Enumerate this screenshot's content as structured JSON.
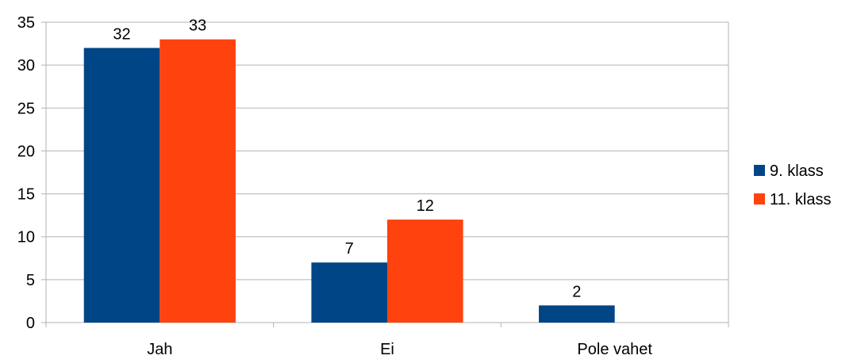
{
  "chart_data": {
    "type": "bar",
    "categories": [
      "Jah",
      "Ei",
      "Pole vahet"
    ],
    "series": [
      {
        "name": "9. klass",
        "values": [
          32,
          7,
          2
        ],
        "color": "#004586"
      },
      {
        "name": "11. klass",
        "values": [
          33,
          12,
          null
        ],
        "color": "#ff420e"
      }
    ],
    "ylim": [
      0,
      35
    ],
    "yticks": [
      0,
      5,
      10,
      15,
      20,
      25,
      30,
      35
    ],
    "grid": true,
    "legend_position": "right",
    "data_labels": true
  }
}
